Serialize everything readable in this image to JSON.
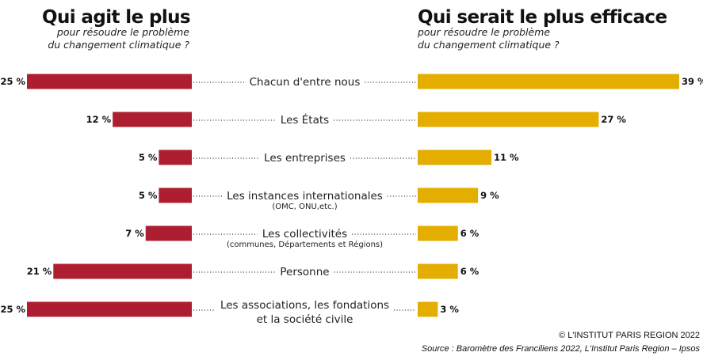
{
  "chart_data": {
    "type": "bar",
    "unit": "%",
    "left_panel": {
      "title": "Qui agit le plus",
      "subtitle_line1": "pour résoudre le problème",
      "subtitle_line2": "du changement climatique ?"
    },
    "right_panel": {
      "title": "Qui serait le plus efficace",
      "subtitle_line1": "pour résoudre  le problème",
      "subtitle_line2": "du changement climatique ?"
    },
    "categories": [
      {
        "label": "Chacun d'entre nous",
        "label2": "",
        "sublabel": ""
      },
      {
        "label": "Les États",
        "label2": "",
        "sublabel": ""
      },
      {
        "label": "Les entreprises",
        "label2": "",
        "sublabel": ""
      },
      {
        "label": "Les instances internationales",
        "label2": "",
        "sublabel": "(OMC, ONU,etc.)"
      },
      {
        "label": "Les collectivités",
        "label2": "",
        "sublabel": "(communes, Départements et Régions)"
      },
      {
        "label": "Personne",
        "label2": "",
        "sublabel": ""
      },
      {
        "label": "Les associations, les fondations",
        "label2": "et la société civile",
        "sublabel": ""
      }
    ],
    "series": [
      {
        "name": "Qui agit le plus",
        "color": "#ad1f30",
        "values": [
          25,
          12,
          5,
          5,
          7,
          21,
          25
        ]
      },
      {
        "name": "Qui serait le plus efficace",
        "color": "#e4ae00",
        "values": [
          39,
          27,
          11,
          9,
          6,
          6,
          3
        ]
      }
    ],
    "value_labels_left": [
      "25 %",
      "12 %",
      "5 %",
      "5 %",
      "7 %",
      "21 %",
      "25 %"
    ],
    "value_labels_right": [
      "39 %",
      "27 %",
      "11 %",
      "9 %",
      "6 %",
      "6 %",
      "3 %"
    ],
    "grid": false
  },
  "footer": {
    "credit": "© L'INSTITUT PARIS REGION 2022",
    "source": "Source : Baromètre des Franciliens 2022, L'Institut Paris Region – Ipsos"
  }
}
